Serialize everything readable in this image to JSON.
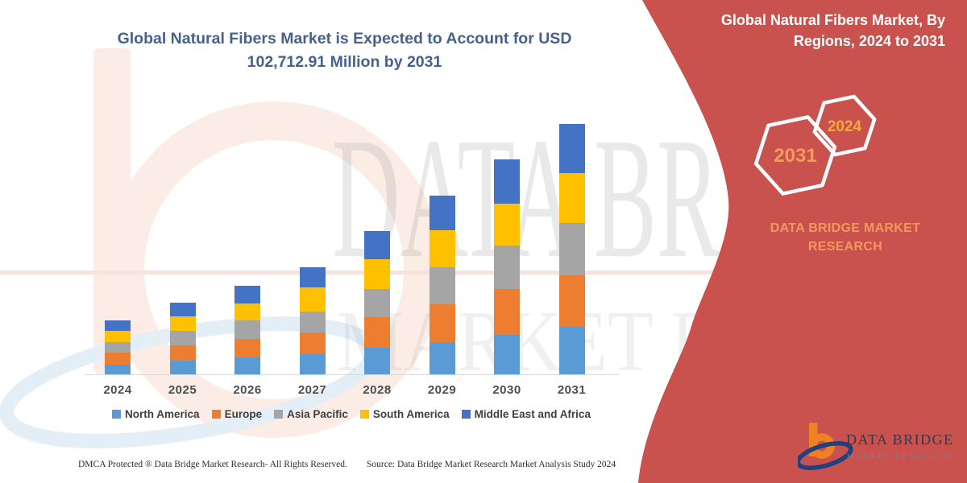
{
  "title": {
    "line1": "Global Natural Fibers Market is Expected to Account for USD",
    "line2": "102,712.91 Million by 2031"
  },
  "chart_data": {
    "type": "bar",
    "stacked": true,
    "title": "Global Natural Fibers Market is Expected to Account for USD 102,712.91 Million by 2031",
    "unit": "USD Million",
    "categories": [
      "2024",
      "2025",
      "2026",
      "2027",
      "2028",
      "2029",
      "2030",
      "2031"
    ],
    "series": [
      {
        "name": "North America",
        "color": "#5B9BD5",
        "values": [
          3970,
          5630,
          6950,
          8280,
          10930,
          13240,
          16220,
          19550
        ]
      },
      {
        "name": "Europe",
        "color": "#ED7D31",
        "values": [
          4960,
          6290,
          7440,
          8940,
          12580,
          15560,
          18870,
          21200
        ]
      },
      {
        "name": "Asia Pacific",
        "color": "#A5A5A5",
        "values": [
          4300,
          5790,
          7780,
          8610,
          11590,
          15230,
          17880,
          21200
        ]
      },
      {
        "name": "South America",
        "color": "#FFC000",
        "values": [
          4630,
          5960,
          6950,
          9930,
          12250,
          15230,
          17220,
          20540
        ]
      },
      {
        "name": "Middle East and Africa",
        "color": "#4472C4",
        "values": [
          4300,
          5630,
          7280,
          8280,
          11590,
          13910,
          17880,
          20220
        ]
      }
    ],
    "totals": [
      22160,
      29300,
      36400,
      44040,
      58940,
      73170,
      88070,
      102712.91
    ],
    "ylim": [
      0,
      102712.91
    ],
    "grid": false,
    "y_axis_labels": false,
    "legend_position": "bottom"
  },
  "panel": {
    "background": "#C9514E",
    "header_line1": "Global Natural Fibers Market, By",
    "header_line2": "Regions, 2024 to 2031",
    "hexagons": [
      {
        "label": "2031",
        "text_color": "#F29B5C"
      },
      {
        "label": "2024",
        "text_color": "#EDAB3C"
      }
    ],
    "brand_line1": "DATA BRIDGE MARKET",
    "brand_line2": "RESEARCH"
  },
  "watermark": {
    "line1": "DATA BRIDGE",
    "line2": "MARKET RESEARCH"
  },
  "logo": {
    "b": "b",
    "name": "DATA BRIDGE",
    "tagline": "MARKET RESEARCH"
  },
  "footer": {
    "dmca": "DMCA Protected ® Data Bridge Market Research-  All Rights Reserved.",
    "source": "Source: Data Bridge Market Research  Market Analysis Study 2024"
  }
}
